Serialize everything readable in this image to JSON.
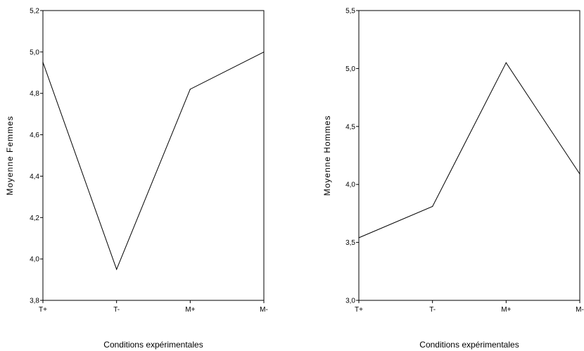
{
  "chart_data": [
    {
      "type": "line",
      "categories": [
        "T+",
        "T-",
        "M+",
        "M-"
      ],
      "values": [
        4.95,
        3.95,
        4.82,
        5.0
      ],
      "xlabel": "Conditions expérimentales",
      "ylabel": "Moyenne Femmes",
      "ylim": [
        3.8,
        5.2
      ],
      "yticks": [
        "3,8",
        "4,0",
        "4,2",
        "4,4",
        "4,6",
        "4,8",
        "5,0",
        "5,2"
      ],
      "grid": false,
      "legend": "none"
    },
    {
      "type": "line",
      "categories": [
        "T+",
        "T-",
        "M+",
        "M-"
      ],
      "values": [
        3.54,
        3.81,
        5.05,
        4.09
      ],
      "xlabel": "Conditions expérimentales",
      "ylabel": "Moyenne Hommes",
      "ylim": [
        3.0,
        5.5
      ],
      "yticks": [
        "3,0",
        "3,5",
        "4,0",
        "4,5",
        "5,0",
        "5,5"
      ],
      "grid": false,
      "legend": "none"
    }
  ]
}
